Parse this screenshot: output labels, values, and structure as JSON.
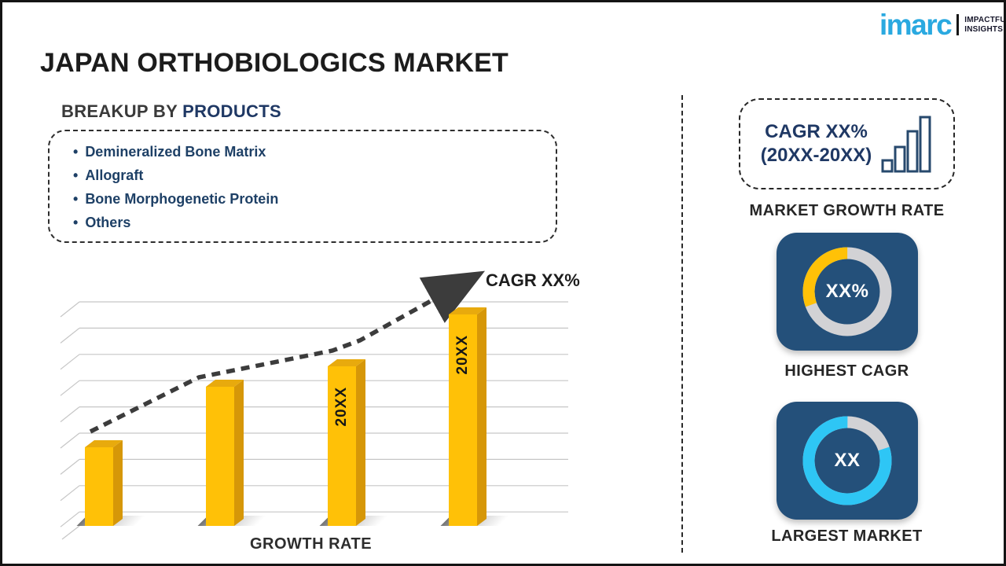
{
  "brand": {
    "logo_text": "imarc",
    "tagline_line1": "IMPACTFUL",
    "tagline_line2": "INSIGHTS"
  },
  "title": "JAPAN ORTHOBIOLOGICS MARKET",
  "breakup": {
    "heading_prefix": "BREAKUP BY",
    "heading_highlight": "PRODUCTS",
    "items": [
      "Demineralized Bone Matrix",
      "Allograft",
      "Bone Morphogenetic Protein",
      "Others"
    ]
  },
  "right_panel": {
    "cagr_line1": "CAGR XX%",
    "cagr_line2": "(20XX-20XX)",
    "cagr_icon": "growth-bars-icon",
    "market_growth_label": "MARKET GROWTH RATE"
  },
  "colors": {
    "accent_blue": "#2AA9E0",
    "navy": "#1F3864",
    "list_navy": "#1E4066",
    "bar_yellow": "#FFC107",
    "bar_top": "#E8AA0D",
    "bar_side": "#D69708",
    "cyan": "#2EC6F5",
    "ring_gray": "#D2D2D5",
    "card_blue": "#24507A",
    "trend_gray": "#3C3C3C"
  },
  "chart_data": [
    {
      "type": "bar",
      "title": "",
      "xlabel": "GROWTH RATE",
      "bar_labels": [
        "",
        "",
        "20XX",
        "20XX"
      ],
      "values_relative": [
        0.35,
        0.62,
        0.71,
        0.94
      ],
      "ylim": [
        0,
        1
      ],
      "grid": "horizontal, 3D-wall style, no axis tick labels",
      "trend": {
        "style": "dashed-arrow",
        "label": "CAGR XX%"
      },
      "note": "placeholder chart: bar heights are relative (no numeric axis shown), years shown as 20XX"
    },
    {
      "type": "donut",
      "label": "HIGHEST CAGR",
      "center_text": "XX%",
      "base_color_key": "ring_gray",
      "segments": [
        {
          "name": "cagr-share",
          "color_key": "bar_yellow",
          "start_deg": 250,
          "end_deg": 360
        }
      ]
    },
    {
      "type": "donut",
      "label": "LARGEST MARKET",
      "center_text": "XX",
      "base_color_key": "ring_gray",
      "segments": [
        {
          "name": "market-share",
          "color_key": "cyan",
          "start_deg": 72,
          "end_deg": 360
        }
      ]
    }
  ]
}
